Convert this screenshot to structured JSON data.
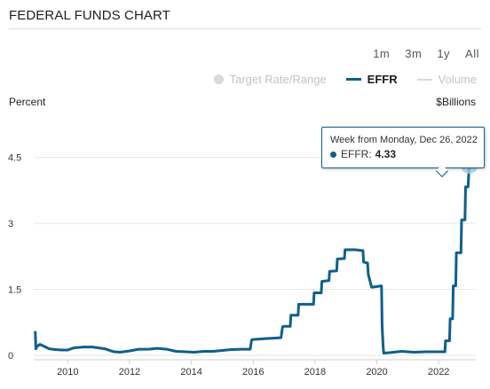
{
  "header": {
    "title": "FEDERAL FUNDS CHART"
  },
  "range_buttons": [
    "1m",
    "3m",
    "1y",
    "All"
  ],
  "legend": {
    "target": "Target Rate/Range",
    "effr": "EFFR",
    "volume": "Volume"
  },
  "axes": {
    "left_title": "Percent",
    "right_title": "$Billions"
  },
  "tooltip": {
    "week_label": "Week from Monday, Dec 26, 2022",
    "series": "EFFR:",
    "value": "4.33"
  },
  "colors": {
    "effr": "#0e5f8c",
    "inactive": "#d9d9d9",
    "grid": "#e6e6e6",
    "marker_halo": "#a9cfe3"
  },
  "chart_data": {
    "type": "line",
    "title": "FEDERAL FUNDS CHART",
    "ylabel": "Percent",
    "y2label": "$Billions",
    "ylim": [
      0,
      5.5
    ],
    "xlim": [
      2008.9,
      2023.2
    ],
    "y_ticks": [
      0,
      1.5,
      3,
      4.5
    ],
    "y_tick_labels": [
      "0",
      "1.5",
      "3",
      "4.5"
    ],
    "x_ticks": [
      2010,
      2012,
      2014,
      2016,
      2018,
      2020,
      2022
    ],
    "x_tick_labels": [
      "2010",
      "2012",
      "2014",
      "2016",
      "2018",
      "2020",
      "2022"
    ],
    "grid": true,
    "legend": "top-right",
    "series": [
      {
        "name": "EFFR",
        "x": [
          2008.95,
          2008.97,
          2009.0,
          2009.1,
          2009.25,
          2009.4,
          2009.6,
          2009.8,
          2010.0,
          2010.2,
          2010.5,
          2010.8,
          2011.0,
          2011.2,
          2011.4,
          2011.5,
          2011.7,
          2012.0,
          2012.3,
          2012.6,
          2012.9,
          2013.2,
          2013.5,
          2013.8,
          2014.1,
          2014.4,
          2014.7,
          2015.0,
          2015.3,
          2015.6,
          2015.9,
          2015.95,
          2016.0,
          2016.4,
          2016.9,
          2016.95,
          2017.0,
          2017.2,
          2017.22,
          2017.45,
          2017.47,
          2017.95,
          2017.97,
          2018.2,
          2018.22,
          2018.45,
          2018.47,
          2018.7,
          2018.72,
          2018.95,
          2018.97,
          2019.3,
          2019.55,
          2019.57,
          2019.7,
          2019.72,
          2019.83,
          2019.85,
          2020.15,
          2020.17,
          2020.2,
          2020.22,
          2020.4,
          2020.8,
          2021.2,
          2021.6,
          2021.9,
          2022.1,
          2022.2,
          2022.22,
          2022.35,
          2022.37,
          2022.45,
          2022.47,
          2022.55,
          2022.57,
          2022.72,
          2022.74,
          2022.85,
          2022.87,
          2022.95,
          2022.97,
          2022.99
        ],
        "y": [
          0.55,
          0.15,
          0.2,
          0.25,
          0.2,
          0.15,
          0.13,
          0.12,
          0.12,
          0.17,
          0.19,
          0.19,
          0.17,
          0.15,
          0.1,
          0.08,
          0.07,
          0.1,
          0.14,
          0.14,
          0.16,
          0.14,
          0.09,
          0.08,
          0.07,
          0.09,
          0.09,
          0.11,
          0.13,
          0.14,
          0.14,
          0.35,
          0.36,
          0.38,
          0.4,
          0.65,
          0.66,
          0.66,
          0.91,
          0.91,
          1.16,
          1.16,
          1.42,
          1.42,
          1.68,
          1.7,
          1.91,
          1.92,
          2.19,
          2.2,
          2.4,
          2.4,
          2.38,
          2.12,
          2.1,
          1.85,
          1.55,
          1.55,
          1.58,
          0.65,
          0.25,
          0.05,
          0.06,
          0.09,
          0.07,
          0.08,
          0.08,
          0.08,
          0.08,
          0.33,
          0.33,
          0.83,
          0.83,
          1.58,
          1.58,
          2.33,
          2.33,
          3.08,
          3.08,
          3.83,
          3.83,
          4.1,
          4.33
        ]
      }
    ],
    "highlight": {
      "x": 2022.99,
      "y": 4.33
    }
  }
}
